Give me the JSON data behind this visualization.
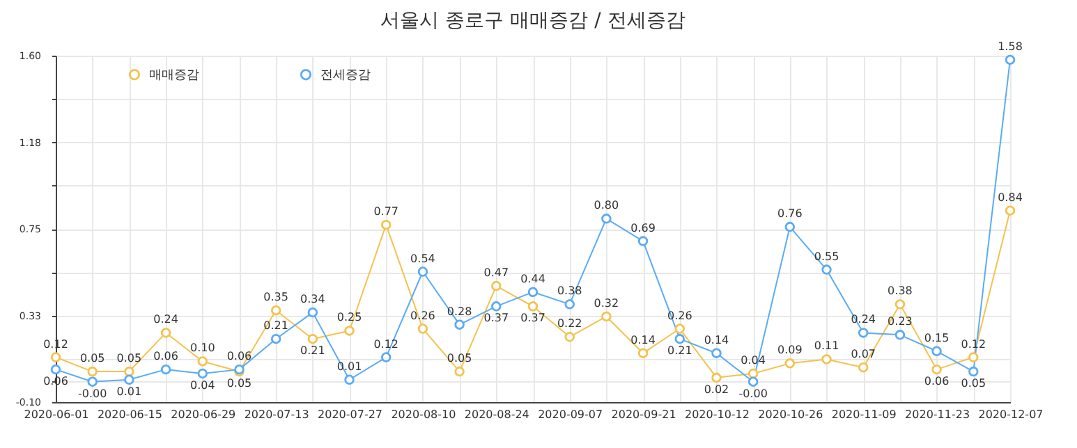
{
  "chart_data": {
    "type": "line",
    "title": "서울시 종로구 매매증감 / 전세증감",
    "categories": [
      "2020-06-01",
      null,
      "2020-06-15",
      null,
      "2020-06-29",
      null,
      "2020-07-13",
      null,
      "2020-07-27",
      null,
      "2020-08-10",
      null,
      "2020-08-24",
      null,
      "2020-09-07",
      null,
      "2020-09-21",
      null,
      "2020-10-12",
      null,
      "2020-10-26",
      null,
      "2020-11-09",
      null,
      "2020-11-23",
      null,
      "2020-12-07"
    ],
    "series": [
      {
        "name": "매매증감",
        "color": "#f4c24f",
        "values": [
          0.12,
          0.05,
          0.05,
          0.24,
          0.1,
          0.05,
          0.35,
          0.21,
          0.25,
          0.77,
          0.26,
          0.05,
          0.47,
          0.37,
          0.22,
          0.32,
          0.14,
          0.26,
          0.02,
          0.04,
          0.09,
          0.11,
          0.07,
          0.38,
          0.06,
          0.12,
          0.84
        ],
        "value_labels": [
          "0.12",
          "0.05",
          "0.05",
          "0.24",
          "0.10",
          "0.05",
          "0.35",
          "0.21",
          "0.25",
          "0.77",
          "0.26",
          "0.05",
          "0.47",
          "0.37",
          "0.22",
          "0.32",
          "0.14",
          "0.26",
          "0.02",
          "0.04",
          "0.09",
          "0.11",
          "0.07",
          "0.38",
          "0.06",
          "0.12",
          "0.84"
        ]
      },
      {
        "name": "전세증감",
        "color": "#5aabf5",
        "values": [
          0.06,
          0.0,
          0.01,
          0.06,
          0.04,
          0.06,
          0.21,
          0.34,
          0.01,
          0.12,
          0.54,
          0.28,
          0.37,
          0.44,
          0.38,
          0.8,
          0.69,
          0.21,
          0.14,
          0.0,
          0.76,
          0.55,
          0.24,
          0.23,
          0.15,
          0.05,
          1.58
        ],
        "value_labels": [
          "0.06",
          "-0.00",
          "0.01",
          "0.06",
          "0.04",
          "0.06",
          "0.21",
          "0.34",
          "0.01",
          "0.12",
          "0.54",
          "0.28",
          "0.37",
          "0.44",
          "0.38",
          "0.80",
          "0.69",
          "0.21",
          "0.14",
          "-0.00",
          "0.76",
          "0.55",
          "0.24",
          "0.23",
          "0.15",
          "0.05",
          "1.58"
        ]
      }
    ],
    "ylim": [
      -0.1,
      1.6
    ],
    "yticks": [
      {
        "value": -0.1,
        "label": "-0.10"
      },
      {
        "value": 0,
        "label": null
      },
      {
        "value": 0.1125,
        "label": null
      },
      {
        "value": 0.325,
        "label": "0.33"
      },
      {
        "value": 0.5375,
        "label": null
      },
      0.75,
      {
        "value": 0.9625,
        "label": null
      },
      {
        "value": 1.175,
        "label": "1.18"
      },
      {
        "value": 1.3875,
        "label": null
      },
      {
        "value": 1.6,
        "label": "1.60"
      }
    ],
    "grid": true,
    "legend": "top left",
    "marker": "circle",
    "line_style": "solid"
  }
}
